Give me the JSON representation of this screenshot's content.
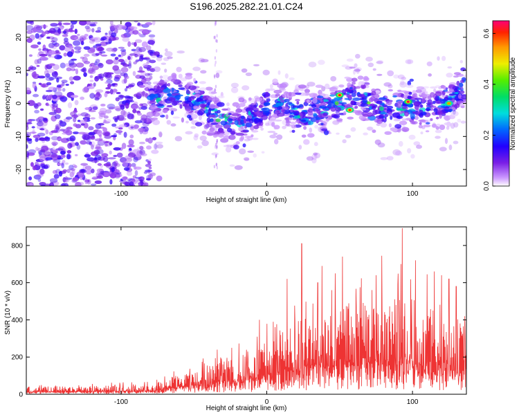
{
  "title": "S196.2025.282.21.01.C24",
  "chart_data": [
    {
      "type": "heatmap",
      "name": "spectrogram",
      "xlabel": "Height of straight line (km)",
      "ylabel": "Frequency (Hz)",
      "xlim": [
        -165,
        137
      ],
      "ylim": [
        -25,
        25
      ],
      "xticks": [
        -100,
        0,
        100
      ],
      "yticks": [
        -20,
        -10,
        0,
        10,
        20
      ],
      "colorbar": {
        "label": "Normalized spectral amplitude",
        "range": [
          0,
          0.65
        ],
        "ticks": [
          0.0,
          0.2,
          0.4,
          0.6
        ]
      },
      "ridge": {
        "description_x": [
          -80,
          -60,
          -45,
          -35,
          -20,
          -10,
          0,
          10,
          25,
          40,
          50,
          60,
          70,
          80,
          95,
          110,
          125,
          135
        ],
        "frequency_center": [
          1,
          3,
          0,
          -5,
          -6,
          -4,
          -1,
          0,
          -3,
          -2,
          1,
          3,
          0,
          -2,
          -1,
          -2,
          0,
          5
        ]
      },
      "peak_points": [
        {
          "x": 50,
          "y": 2.5,
          "value": 0.62
        },
        {
          "x": 57,
          "y": -2,
          "value": 0.6
        },
        {
          "x": 97,
          "y": 0.5,
          "value": 0.63
        },
        {
          "x": 125,
          "y": 0,
          "value": 0.55
        }
      ]
    },
    {
      "type": "line",
      "name": "snr",
      "xlabel": "Height of straight line (km)",
      "ylabel": "SNR (10 * v/v)",
      "xlim": [
        -165,
        137
      ],
      "ylim": [
        0,
        900
      ],
      "xticks": [
        -100,
        0,
        100
      ],
      "yticks": [
        0,
        200,
        400,
        600,
        800
      ],
      "color": "#ee3333",
      "envelope": {
        "x": [
          -165,
          -80,
          -60,
          -40,
          -20,
          -5,
          10,
          25,
          50,
          80,
          100,
          120,
          137
        ],
        "typical_max": [
          40,
          50,
          110,
          170,
          200,
          260,
          330,
          420,
          470,
          520,
          520,
          430,
          360
        ]
      },
      "notable_spikes": [
        {
          "x": -34,
          "y": 240
        },
        {
          "x": -5,
          "y": 400
        },
        {
          "x": 14,
          "y": 620
        },
        {
          "x": 24,
          "y": 810
        },
        {
          "x": 35,
          "y": 600
        },
        {
          "x": 38,
          "y": 690
        },
        {
          "x": 47,
          "y": 650
        },
        {
          "x": 52,
          "y": 740
        },
        {
          "x": 64,
          "y": 575
        },
        {
          "x": 75,
          "y": 640
        },
        {
          "x": 79,
          "y": 745
        },
        {
          "x": 90,
          "y": 590
        },
        {
          "x": 93,
          "y": 893
        },
        {
          "x": 102,
          "y": 720
        },
        {
          "x": 110,
          "y": 645
        },
        {
          "x": 115,
          "y": 660
        },
        {
          "x": 120,
          "y": 640
        },
        {
          "x": 125,
          "y": 620
        },
        {
          "x": 130,
          "y": 580
        },
        {
          "x": 136,
          "y": 420
        }
      ]
    }
  ]
}
